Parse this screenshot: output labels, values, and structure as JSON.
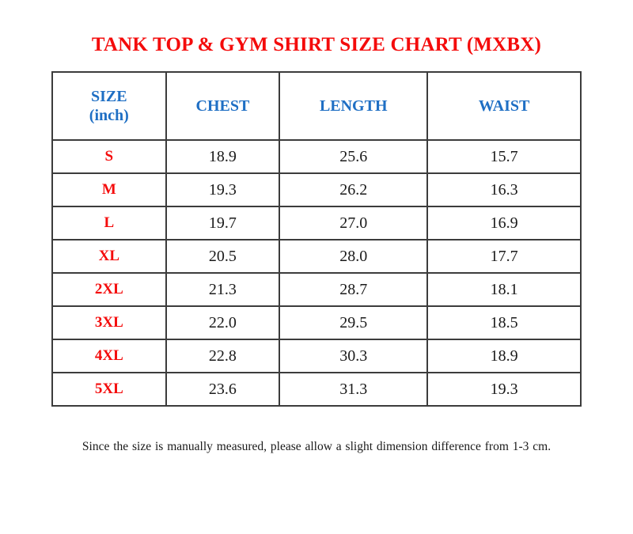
{
  "title": "TANK TOP & GYM SHIRT SIZE CHART (MXBX)",
  "table": {
    "columns": {
      "size": "SIZE\n(inch)",
      "chest": "CHEST",
      "length": "LENGTH",
      "waist": "WAIST"
    },
    "rows": [
      {
        "size": "S",
        "chest": "18.9",
        "length": "25.6",
        "waist": "15.7"
      },
      {
        "size": "M",
        "chest": "19.3",
        "length": "26.2",
        "waist": "16.3"
      },
      {
        "size": "L",
        "chest": "19.7",
        "length": "27.0",
        "waist": "16.9"
      },
      {
        "size": "XL",
        "chest": "20.5",
        "length": "28.0",
        "waist": "17.7"
      },
      {
        "size": "2XL",
        "chest": "21.3",
        "length": "28.7",
        "waist": "18.1"
      },
      {
        "size": "3XL",
        "chest": "22.0",
        "length": "29.5",
        "waist": "18.5"
      },
      {
        "size": "4XL",
        "chest": "22.8",
        "length": "30.3",
        "waist": "18.9"
      },
      {
        "size": "5XL",
        "chest": "23.6",
        "length": "31.3",
        "waist": "19.3"
      }
    ]
  },
  "footer_note": "Since the size is manually measured, please allow a slight dimension difference from 1-3 cm.",
  "colors": {
    "title_red": "#F40B0B",
    "header_blue": "#1F6FC4",
    "value_black": "#1A1A1A",
    "border_gray": "#3C3C3C",
    "background": "#FFFFFF"
  },
  "chart_data": {
    "type": "table",
    "title": "TANK TOP & GYM SHIRT SIZE CHART (MXBX)",
    "unit": "inch",
    "columns": [
      "SIZE (inch)",
      "CHEST",
      "LENGTH",
      "WAIST"
    ],
    "rows": [
      [
        "S",
        18.9,
        25.6,
        15.7
      ],
      [
        "M",
        19.3,
        26.2,
        16.3
      ],
      [
        "L",
        19.7,
        27.0,
        16.9
      ],
      [
        "XL",
        20.5,
        28.0,
        17.7
      ],
      [
        "2XL",
        21.3,
        28.7,
        18.1
      ],
      [
        "3XL",
        22.0,
        29.5,
        18.5
      ],
      [
        "4XL",
        22.8,
        30.3,
        18.9
      ],
      [
        "5XL",
        23.6,
        31.3,
        19.3
      ]
    ],
    "note": "Since the size is manually measured, please allow a slight dimension difference from 1-3 cm."
  }
}
